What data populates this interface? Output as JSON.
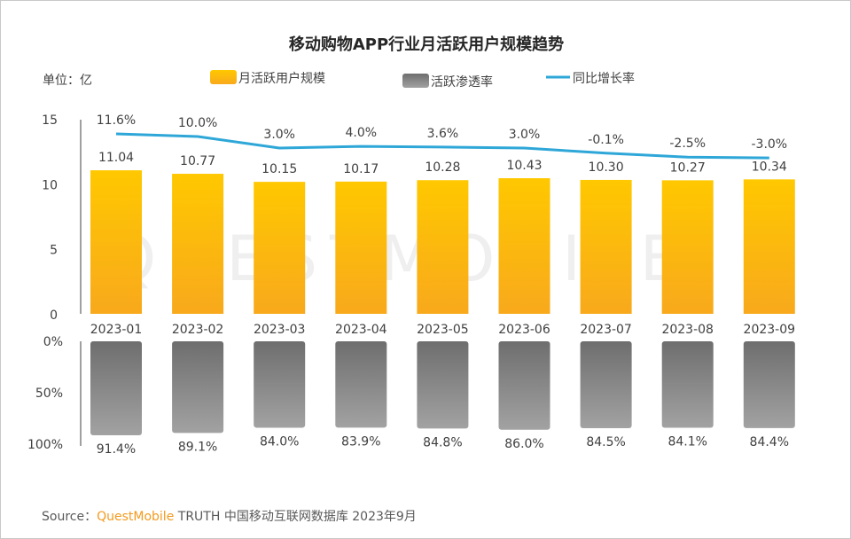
{
  "chart_data": [
    {
      "type": "bar",
      "title": "移动购物APP行业月活跃用户规模趋势",
      "unit_label": "单位：亿",
      "categories": [
        "2023-01",
        "2023-02",
        "2023-03",
        "2023-04",
        "2023-05",
        "2023-06",
        "2023-07",
        "2023-08",
        "2023-09"
      ],
      "ylim": [
        0,
        15
      ],
      "yticks": [
        "0",
        "5",
        "10",
        "15"
      ],
      "grid": false,
      "legend_position": "top",
      "series": [
        {
          "name": "月活跃用户规模",
          "type": "bar",
          "color": "#ffc000",
          "values": [
            11.04,
            10.77,
            10.15,
            10.17,
            10.28,
            10.43,
            10.3,
            10.27,
            10.34
          ],
          "labels": [
            "11.04",
            "10.77",
            "10.15",
            "10.17",
            "10.28",
            "10.43",
            "10.30",
            "10.27",
            "10.34"
          ]
        },
        {
          "name": "同比增长率",
          "type": "line",
          "color": "#2ea7d8",
          "values": [
            11.6,
            10.0,
            3.0,
            4.0,
            3.6,
            3.0,
            -0.1,
            -2.5,
            -3.0
          ],
          "labels": [
            "11.6%",
            "10.0%",
            "3.0%",
            "4.0%",
            "3.6%",
            "3.0%",
            "-0.1%",
            "-2.5%",
            "-3.0%"
          ]
        }
      ]
    },
    {
      "type": "bar",
      "orientation": "inverted",
      "ylim": [
        0,
        100
      ],
      "yticks": [
        "0%",
        "50%",
        "100%"
      ],
      "series": [
        {
          "name": "活跃渗透率",
          "color": "#8c8c8c",
          "values": [
            91.4,
            89.1,
            84.0,
            83.9,
            84.8,
            86.0,
            84.5,
            84.1,
            84.4
          ],
          "labels": [
            "91.4%",
            "89.1%",
            "84.0%",
            "83.9%",
            "84.8%",
            "86.0%",
            "84.5%",
            "84.1%",
            "84.4%"
          ]
        }
      ]
    }
  ],
  "watermark": "QUESTMOBILE",
  "source": {
    "prefix": "Source：",
    "brand": "QuestMobile",
    "text": " TRUTH 中国移动互联网数据库 2023年9月"
  }
}
